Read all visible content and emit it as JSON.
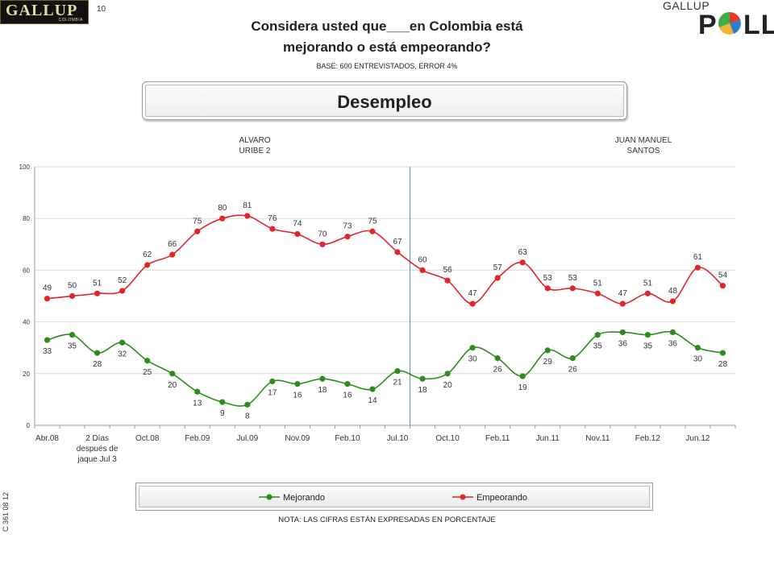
{
  "header": {
    "logo_left_text": "GALLUP",
    "logo_left_sub": "COLOMBIA",
    "page_number": "10",
    "logo_right_top": "GALLUP",
    "logo_right_word_start": "P",
    "logo_right_word_end": "LL",
    "title_line1": "Considera usted que___en Colombia está",
    "title_line2": "mejorando o está empeorando?",
    "base": "BASE: 600 ENTREVISTADOS, ERROR 4%",
    "topic": "Desempleo"
  },
  "eras": {
    "era1_line1": "ALVARO",
    "era1_line2": "URIBE 2",
    "era2_line1": "JUAN MANUEL",
    "era2_line2": "SANTOS"
  },
  "side_code": "C 361 08 12",
  "nota": "NOTA: LAS CIFRAS ESTÁN EXPRESADAS EN PORCENTAJE",
  "chart_data": {
    "type": "line",
    "ylim": [
      0,
      100
    ],
    "yticks": [
      0,
      20,
      40,
      60,
      80,
      100
    ],
    "grid": "horizontal",
    "legend_position": "bottom",
    "x_count": 28,
    "x_tick_labels": [
      {
        "index": 0,
        "lines": [
          "Abr.08"
        ]
      },
      {
        "index": 2,
        "lines": [
          "2 Días",
          "después de",
          "jaque Jul 3"
        ]
      },
      {
        "index": 4,
        "lines": [
          "Oct.08"
        ]
      },
      {
        "index": 6,
        "lines": [
          "Feb.09"
        ]
      },
      {
        "index": 8,
        "lines": [
          "Jul.09"
        ]
      },
      {
        "index": 10,
        "lines": [
          "Nov.09"
        ]
      },
      {
        "index": 12,
        "lines": [
          "Feb.10"
        ]
      },
      {
        "index": 14,
        "lines": [
          "Jul.10"
        ]
      },
      {
        "index": 16,
        "lines": [
          "Oct.10"
        ]
      },
      {
        "index": 18,
        "lines": [
          "Feb.11"
        ]
      },
      {
        "index": 20,
        "lines": [
          "Jun.11"
        ]
      },
      {
        "index": 22,
        "lines": [
          "Nov.11"
        ]
      },
      {
        "index": 24,
        "lines": [
          "Feb.12"
        ]
      },
      {
        "index": 26,
        "lines": [
          "Jun.12"
        ]
      }
    ],
    "divider_after_index": 14.5,
    "series": [
      {
        "name": "Mejorando",
        "color": "#2e8b1e",
        "values": [
          33,
          35,
          28,
          32,
          25,
          20,
          13,
          9,
          8,
          17,
          16,
          18,
          16,
          14,
          21,
          18,
          20,
          30,
          26,
          19,
          29,
          26,
          35,
          36,
          35,
          36,
          30,
          28
        ]
      },
      {
        "name": "Empeorando",
        "color": "#e0262a",
        "values": [
          49,
          50,
          51,
          52,
          62,
          66,
          75,
          80,
          81,
          76,
          74,
          70,
          73,
          75,
          67,
          60,
          56,
          47,
          57,
          63,
          53,
          53,
          51,
          47,
          51,
          48,
          61,
          54
        ]
      }
    ]
  },
  "colors": {
    "grid": "#d9d9d9",
    "axis": "#9a9a9a",
    "divider": "#5b8fc7"
  }
}
